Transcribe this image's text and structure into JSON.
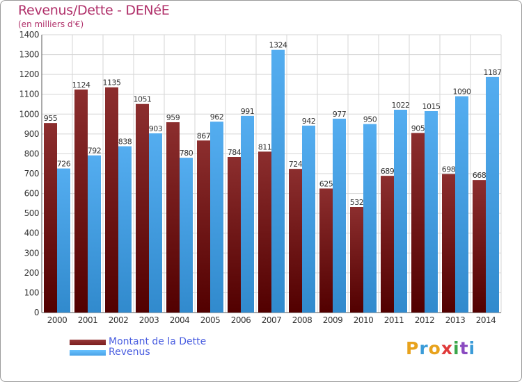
{
  "title": "Revenus/Dette - DENéE",
  "subtitle": "(en milliers d'€)",
  "chart_data": {
    "type": "bar",
    "categories": [
      "2000",
      "2001",
      "2002",
      "2003",
      "2004",
      "2005",
      "2006",
      "2007",
      "2008",
      "2009",
      "2010",
      "2011",
      "2012",
      "2013",
      "2014"
    ],
    "series": [
      {
        "name": "Montant de la Dette",
        "color": "#7a1c1c",
        "values": [
          955,
          1124,
          1135,
          1051,
          959,
          867,
          784,
          811,
          724,
          625,
          532,
          689,
          905,
          698,
          668
        ]
      },
      {
        "name": "Revenus",
        "color": "#4aa3e6",
        "values": [
          726,
          792,
          838,
          903,
          780,
          962,
          991,
          1324,
          942,
          977,
          950,
          1022,
          1015,
          1090,
          1187
        ]
      }
    ],
    "yticks": [
      0,
      100,
      200,
      300,
      400,
      500,
      600,
      700,
      800,
      900,
      1000,
      1100,
      1200,
      1300,
      1400
    ],
    "ylim": [
      0,
      1400
    ],
    "grid": true,
    "legend_position": "bottom-left"
  },
  "legend": [
    {
      "label": "Montant de la Dette",
      "swatch_color": "#7a1c1c"
    },
    {
      "label": "Revenus",
      "swatch_color": "#4aa3e6"
    }
  ],
  "logo": {
    "letters": [
      "P",
      "r",
      "o",
      "x",
      "i",
      "t",
      "i"
    ],
    "colors": [
      "#e8a21c",
      "#3a9bd8",
      "#e8a21c",
      "#e03a3a",
      "#3aa64a",
      "#8a4ac0",
      "#3a9bd8"
    ]
  }
}
